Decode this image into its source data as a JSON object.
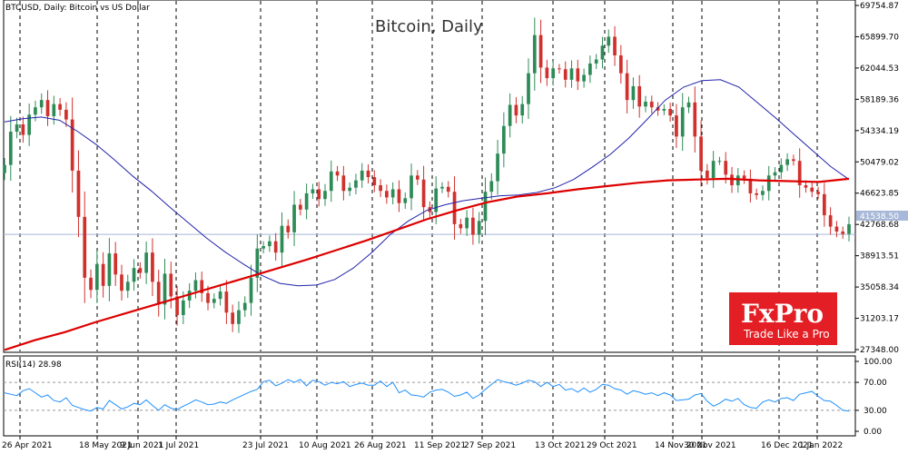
{
  "chart_data": {
    "type": "candlestick",
    "symbol_label": "BTCUSD, Daily:  Bitcoin vs US Dollar",
    "title": "Bitcoin, Daily",
    "y_ticks": [
      "69754.87",
      "65899.70",
      "62044.53",
      "58189.36",
      "54334.19",
      "50479.02",
      "46623.85",
      "42768.68",
      "38913.51",
      "35058.34",
      "31203.17",
      "27348.00"
    ],
    "ylim": [
      27348,
      69754.87
    ],
    "current_price": "41538.50",
    "x_ticks": [
      "26 Apr 2021",
      "18 May 2021",
      "9 Jun 2021",
      "1 Jul 2021",
      "23 Jul 2021",
      "10 Aug 2021",
      "26 Aug 2021",
      "11 Sep 2021",
      "27 Sep 2021",
      "13 Oct 2021",
      "29 Oct 2021",
      "14 Nov 2021",
      "30 Nov 2021",
      "16 Dec 2021",
      "1 Jan 2022"
    ],
    "close_series": [
      50100,
      54200,
      55100,
      53800,
      56300,
      57200,
      58100,
      56100,
      57600,
      56900,
      55700,
      49400,
      43700,
      36200,
      34700,
      37900,
      35200,
      39200,
      36600,
      34600,
      35700,
      37400,
      36800,
      39300,
      35700,
      32900,
      36700,
      33900,
      31600,
      33400,
      34600,
      35900,
      34300,
      33100,
      33600,
      34500,
      31900,
      30500,
      32200,
      33100,
      36200,
      39800,
      40100,
      40700,
      39300,
      42600,
      41800,
      45200,
      44600,
      46600,
      47100,
      45900,
      46900,
      49300,
      48800,
      46900,
      47300,
      48200,
      49400,
      48600,
      47600,
      46900,
      46100,
      47100,
      45400,
      46000,
      48800,
      48300,
      44900,
      44300,
      47200,
      47400,
      46800,
      42800,
      42300,
      43600,
      41500,
      43200,
      46800,
      48100,
      51500,
      54900,
      57500,
      56200,
      57600,
      61400,
      66100,
      62100,
      60800,
      62000,
      61900,
      60600,
      62000,
      60400,
      61200,
      62600,
      63100,
      64800,
      65900,
      63600,
      61400,
      58100,
      59800,
      57300,
      57900,
      57200,
      56800,
      57000,
      56200,
      53600,
      57200,
      57800,
      53600,
      49400,
      48500,
      50600,
      50600,
      48900,
      47600,
      48800,
      48400,
      46600,
      46400,
      46900,
      48800,
      49200,
      50100,
      50800,
      50600,
      47600,
      47300,
      46800,
      46500,
      43900,
      42500,
      41900,
      41600,
      42800
    ],
    "ma_series": [
      {
        "name": "",
        "color": "#2222aa",
        "values": [
          55400,
          55800,
          56000,
          55600,
          54200,
          52600,
          50700,
          48700,
          46900,
          44900,
          43000,
          41100,
          39400,
          37900,
          36500,
          35500,
          35200,
          35300,
          36000,
          37400,
          39300,
          41500,
          43200,
          44500,
          45200,
          45700,
          46000,
          46300,
          46400,
          46700,
          47300,
          48300,
          49800,
          51400,
          53400,
          55700,
          58100,
          59700,
          60500,
          60600,
          59700,
          57800,
          55900,
          53900,
          51900,
          49900,
          48300
        ]
      },
      {
        "name": "",
        "color": "#dd0000",
        "values": [
          27300,
          28500,
          29500,
          30700,
          31800,
          32900,
          34000,
          35100,
          36200,
          37300,
          38400,
          39600,
          40800,
          42100,
          43400,
          44500,
          45500,
          46200,
          46600,
          47100,
          47500,
          47900,
          48200,
          48300,
          48400,
          48200,
          48100,
          48000,
          48400
        ]
      }
    ],
    "rsi": {
      "label": "RSI(14) 28.98",
      "y_ticks": [
        "100.00",
        "70.00",
        "30.00",
        "0.00"
      ],
      "ylim": [
        0,
        100
      ],
      "values": [
        55,
        53,
        51,
        58,
        61,
        55,
        49,
        52,
        44,
        42,
        48,
        37,
        34,
        31,
        29,
        34,
        32,
        44,
        38,
        32,
        35,
        40,
        38,
        45,
        37,
        30,
        38,
        33,
        31,
        36,
        40,
        45,
        42,
        38,
        39,
        42,
        40,
        45,
        49,
        53,
        57,
        60,
        71,
        73,
        65,
        69,
        74,
        70,
        74,
        65,
        73,
        71,
        66,
        70,
        68,
        71,
        64,
        67,
        69,
        66,
        66,
        72,
        64,
        70,
        55,
        59,
        52,
        51,
        49,
        56,
        59,
        60,
        56,
        50,
        52,
        56,
        47,
        52,
        60,
        67,
        74,
        71,
        69,
        66,
        69,
        73,
        71,
        64,
        70,
        64,
        67,
        59,
        61,
        56,
        62,
        56,
        60,
        67,
        66,
        61,
        59,
        53,
        58,
        56,
        53,
        55,
        51,
        55,
        52,
        44,
        45,
        46,
        52,
        54,
        43,
        36,
        40,
        46,
        43,
        47,
        38,
        34,
        33,
        42,
        45,
        42,
        47,
        48,
        44,
        53,
        55,
        57,
        50,
        44,
        43,
        37,
        30,
        29
      ]
    }
  },
  "logo": {
    "main": "FxPro",
    "sub": "Trade Like a Pro",
    "color": "#e31e24"
  }
}
